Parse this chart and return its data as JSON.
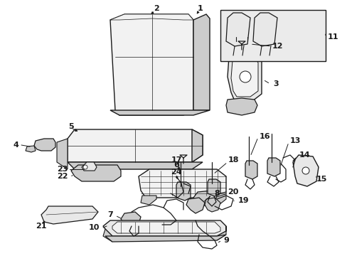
{
  "bg_color": "#ffffff",
  "line_color": "#1a1a1a",
  "lw_main": 1.0,
  "lw_thin": 0.6,
  "label_fontsize": 8,
  "fig_width": 4.89,
  "fig_height": 3.6,
  "dpi": 100,
  "gray_fill": "#e8e8e8",
  "gray_dark": "#cccccc",
  "gray_light": "#f2f2f2",
  "white": "#ffffff"
}
